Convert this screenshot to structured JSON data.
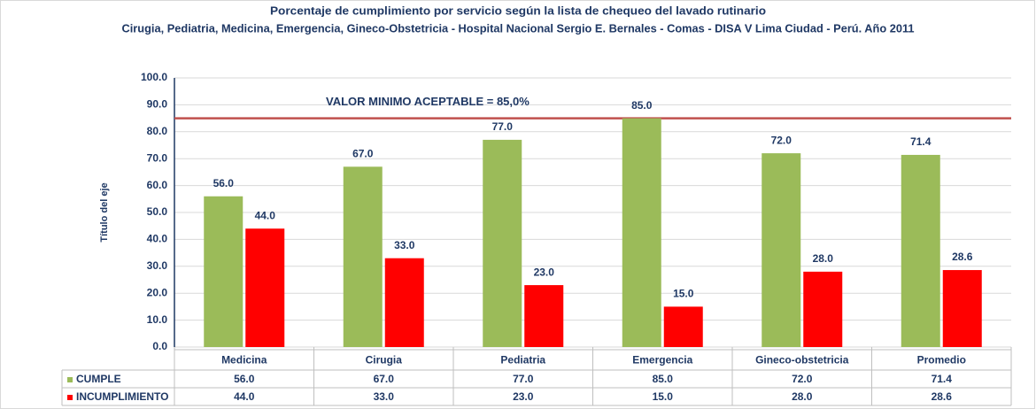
{
  "chart_data": {
    "type": "bar",
    "title": "Porcentaje de cumplimiento por servicio según la lista de chequeo del lavado rutinario",
    "subtitle": "Cirugia, Pediatria, Medicina, Emergencia, Gineco-Obstetricia - Hospital Nacional Sergio E. Bernales - Comas - DISA V Lima Ciudad - Perú. Año 2011",
    "y_label": "Título del eje",
    "categories": [
      "Medicina",
      "Cirugia",
      "Pediatria",
      "Emergencia",
      "Gineco-obstetricia",
      "Promedio"
    ],
    "series": [
      {
        "name": "CUMPLE",
        "color": "#9bbb59",
        "values": [
          56,
          67,
          77,
          85,
          72,
          71.4
        ],
        "value_labels": [
          "56.0",
          "67.0",
          "77.0",
          "85.0",
          "72.0",
          "71.4"
        ]
      },
      {
        "name": "INCUMPLIMIENTO",
        "color": "#ff0000",
        "values": [
          44,
          33,
          23,
          15,
          28,
          28.6
        ],
        "value_labels": [
          "44.0",
          "33.0",
          "23.0",
          "15.0",
          "28.0",
          "28.6"
        ]
      }
    ],
    "ylim": [
      0,
      100
    ],
    "yticks": [
      {
        "value": 0,
        "label": "0.0"
      },
      {
        "value": 10,
        "label": "10.0"
      },
      {
        "value": 20,
        "label": "20.0"
      },
      {
        "value": 30,
        "label": "30.0"
      },
      {
        "value": 40,
        "label": "40.0"
      },
      {
        "value": 50,
        "label": "50.0"
      },
      {
        "value": 60,
        "label": "60.0"
      },
      {
        "value": 70,
        "label": "70.0"
      },
      {
        "value": 80,
        "label": "80.0"
      },
      {
        "value": 90,
        "label": "90.0"
      },
      {
        "value": 100,
        "label": "100.0"
      }
    ],
    "grid": true,
    "reference_line": {
      "value": 85,
      "label": "VALOR MINIMO ACEPTABLE = 85,0%",
      "color": "#c0504d"
    }
  }
}
